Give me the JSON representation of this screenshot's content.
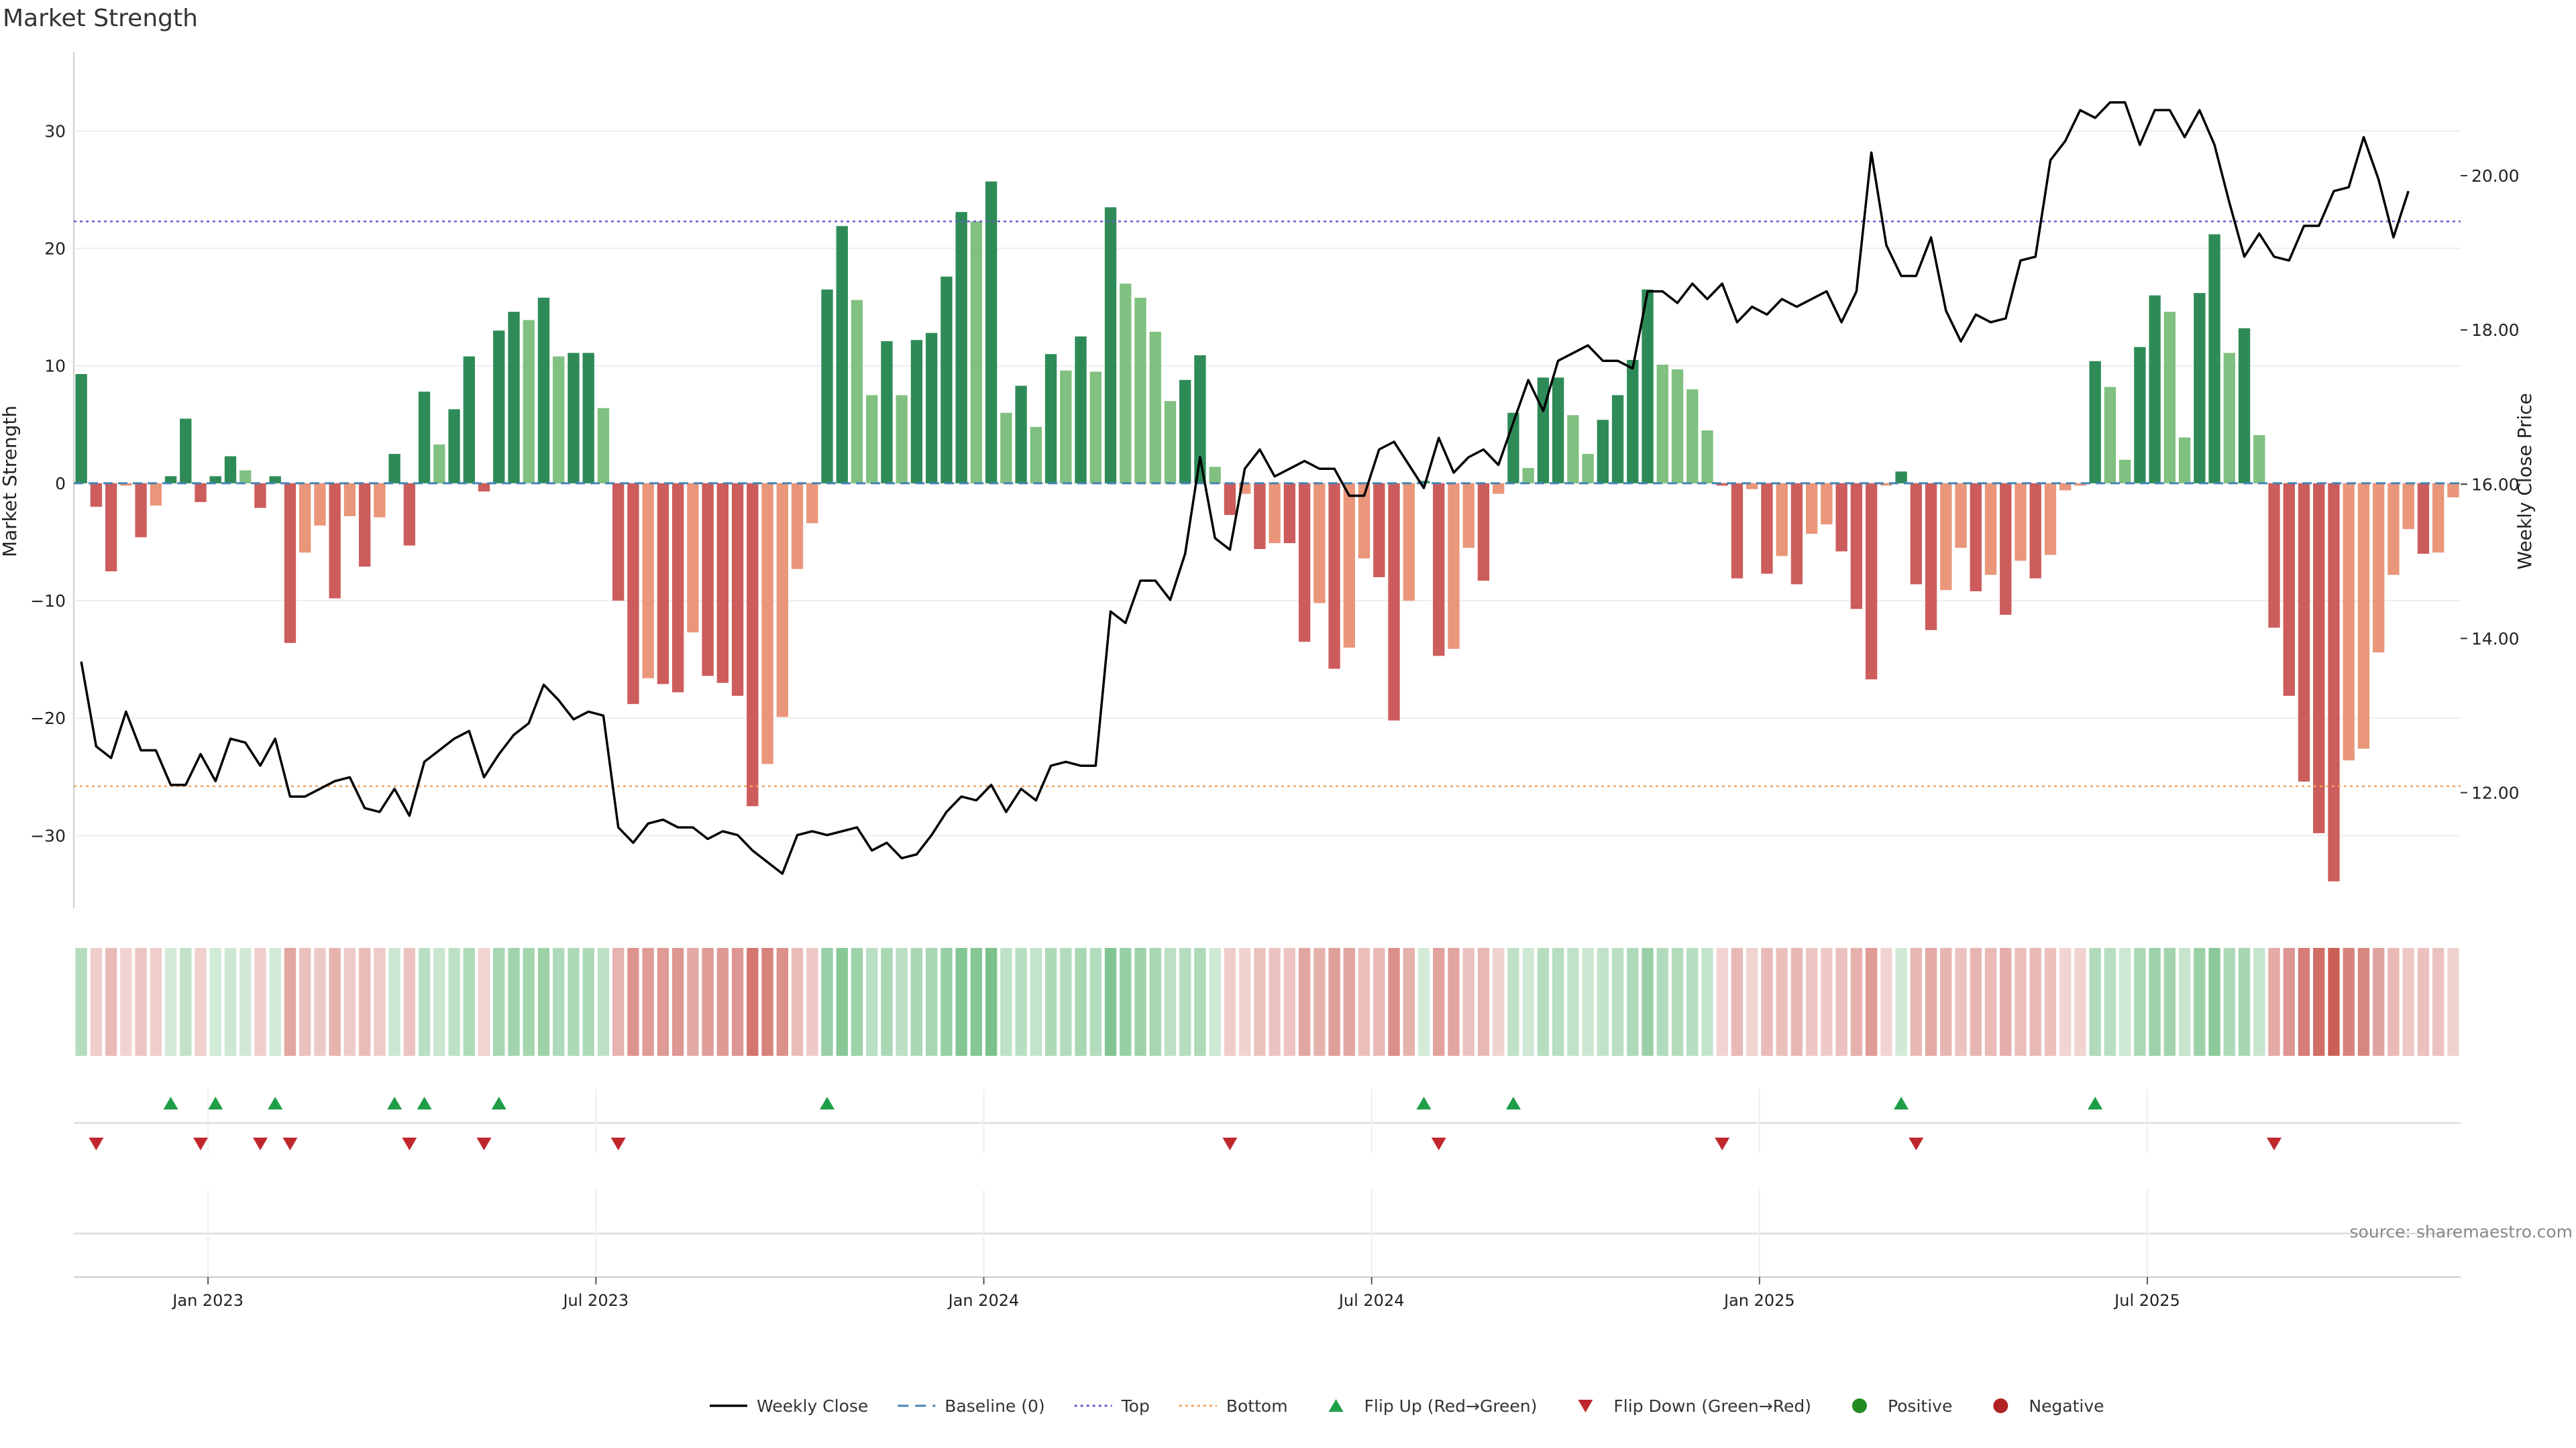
{
  "page": {
    "title": "Market Strength",
    "source": "source: sharemaestro.com"
  },
  "colors": {
    "pos_strong": "#2e8b57",
    "pos_light": "#80c080",
    "neg_strong": "#cd5c5c",
    "neg_light": "#e9967a",
    "baseline": "#4682b4",
    "top": "#6a5acd",
    "bottom": "#f4a460",
    "flip_up": "#1f9e48",
    "flip_down": "#c0272d",
    "positive_dot": "#228b22",
    "negative_dot": "#b22222",
    "price_line": "#000000"
  },
  "legend": [
    {
      "label": "Weekly Close",
      "kind": "line",
      "color": "#000000"
    },
    {
      "label": "Baseline (0)",
      "kind": "dash",
      "color": "#4682b4"
    },
    {
      "label": "Top",
      "kind": "dot",
      "color": "#6a5acd"
    },
    {
      "label": "Bottom",
      "kind": "dot",
      "color": "#f4a460"
    },
    {
      "label": "Flip Up (Red→Green)",
      "kind": "tri-up",
      "color": "#1f9e48"
    },
    {
      "label": "Flip Down (Green→Red)",
      "kind": "tri-down",
      "color": "#c0272d"
    },
    {
      "label": "Positive",
      "kind": "circle",
      "color": "#228b22"
    },
    {
      "label": "Negative",
      "kind": "circle",
      "color": "#b22222"
    }
  ],
  "chart_data": {
    "type": "bar",
    "title": "Market Strength",
    "ylabel": "Market Strength",
    "y2label": "Weekly Close Price",
    "ylim": [
      -36.2,
      36.7
    ],
    "y2lim": [
      10.5,
      21.6
    ],
    "yticks": [
      -30,
      -20,
      -10,
      0,
      10,
      20,
      30
    ],
    "y2ticks": [
      "12.00",
      "14.00",
      "16.00",
      "18.00",
      "20.00"
    ],
    "y2tick_values": [
      12,
      14,
      16,
      18,
      20
    ],
    "xticks": [
      {
        "label": "Jan 2023",
        "week": 9
      },
      {
        "label": "Jul 2023",
        "week": 35
      },
      {
        "label": "Jan 2024",
        "week": 61
      },
      {
        "label": "Jul 2024",
        "week": 87
      },
      {
        "label": "Jan 2025",
        "week": 113
      },
      {
        "label": "Jul 2025",
        "week": 139
      }
    ],
    "top_line": 22.3,
    "bottom_line": -25.8,
    "strength": [
      9.3,
      -2,
      -7.5,
      -0.2,
      -4.6,
      -1.9,
      0.6,
      5.5,
      -1.6,
      0.6,
      2.3,
      1.1,
      -2.1,
      0.6,
      -13.6,
      -5.9,
      -3.6,
      -9.8,
      -2.8,
      -7.1,
      -2.9,
      2.5,
      -5.3,
      7.8,
      3.3,
      6.3,
      10.8,
      -0.7,
      13,
      14.6,
      13.9,
      15.8,
      10.8,
      11.1,
      11.1,
      6.4,
      -10,
      -18.8,
      -16.6,
      -17.1,
      -17.8,
      -12.7,
      -16.4,
      -17,
      -18.1,
      -27.5,
      -23.9,
      -19.9,
      -7.3,
      -3.4,
      16.5,
      21.9,
      15.6,
      7.5,
      12.1,
      7.5,
      12.2,
      12.8,
      17.6,
      23.1,
      22.3,
      25.7,
      6,
      8.3,
      4.8,
      11,
      9.6,
      12.5,
      9.5,
      23.5,
      17,
      15.8,
      12.9,
      7,
      8.8,
      10.9,
      1.4,
      -2.7,
      -0.9,
      -5.6,
      -5.1,
      -5.1,
      -13.5,
      -10.2,
      -15.8,
      -14,
      -6.4,
      -8,
      -20.2,
      -10,
      0.2,
      -14.7,
      -14.1,
      -5.5,
      -8.3,
      -0.9,
      6,
      1.3,
      9,
      9,
      5.8,
      2.5,
      5.4,
      7.5,
      10.5,
      16.5,
      10.1,
      9.7,
      8,
      4.5,
      -0.2,
      -8.1,
      -0.5,
      -7.7,
      -6.2,
      -8.6,
      -4.3,
      -3.5,
      -5.8,
      -10.7,
      -16.7,
      -0.2,
      1,
      -8.6,
      -12.5,
      -9.1,
      -5.5,
      -9.2,
      -7.8,
      -11.2,
      -6.6,
      -8.1,
      -6.1,
      -0.6,
      -0.2,
      10.4,
      8.2,
      2,
      11.6,
      16,
      14.6,
      3.9,
      16.2,
      21.2,
      11.1,
      13.2,
      4.1,
      -12.3,
      -18.1,
      -25.4,
      -29.8,
      -33.9,
      -23.6,
      -22.6,
      -14.4,
      -7.8,
      -3.9,
      -6,
      -5.9,
      -1.2
    ],
    "close": [
      13.7,
      12.6,
      12.45,
      13.05,
      12.55,
      12.55,
      12.1,
      12.1,
      12.5,
      12.15,
      12.7,
      12.65,
      12.35,
      12.7,
      11.95,
      11.95,
      12.05,
      12.15,
      12.2,
      11.8,
      11.75,
      12.05,
      11.7,
      12.4,
      12.55,
      12.7,
      12.8,
      12.2,
      12.5,
      12.75,
      12.9,
      13.4,
      13.2,
      12.95,
      13.05,
      13,
      11.55,
      11.35,
      11.6,
      11.65,
      11.55,
      11.55,
      11.4,
      11.5,
      11.45,
      11.25,
      11.1,
      10.95,
      11.45,
      11.5,
      11.45,
      11.5,
      11.55,
      11.25,
      11.35,
      11.15,
      11.2,
      11.45,
      11.75,
      11.95,
      11.9,
      12.1,
      11.75,
      12.05,
      11.9,
      12.35,
      12.4,
      12.35,
      12.35,
      14.35,
      14.2,
      14.75,
      14.75,
      14.5,
      15.1,
      16.35,
      15.3,
      15.15,
      16.2,
      16.45,
      16.1,
      16.2,
      16.3,
      16.2,
      16.2,
      15.85,
      15.85,
      16.45,
      16.55,
      16.25,
      15.95,
      16.6,
      16.15,
      16.35,
      16.45,
      16.25,
      16.8,
      17.35,
      16.95,
      17.6,
      17.7,
      17.8,
      17.6,
      17.6,
      17.5,
      18.5,
      18.5,
      18.35,
      18.6,
      18.4,
      18.6,
      18.1,
      18.3,
      18.2,
      18.4,
      18.3,
      18.4,
      18.5,
      18.1,
      18.5,
      20.3,
      19.1,
      18.7,
      18.7,
      19.2,
      18.25,
      17.85,
      18.2,
      18.1,
      18.15,
      18.9,
      18.95,
      20.2,
      20.45,
      20.85,
      20.75,
      20.95,
      20.95,
      20.4,
      20.85,
      20.85,
      20.5,
      20.85,
      20.4,
      19.65,
      18.95,
      19.25,
      18.95,
      18.9,
      19.35,
      19.35,
      19.8,
      19.85,
      20.5,
      19.95,
      19.2,
      19.8
    ]
  }
}
